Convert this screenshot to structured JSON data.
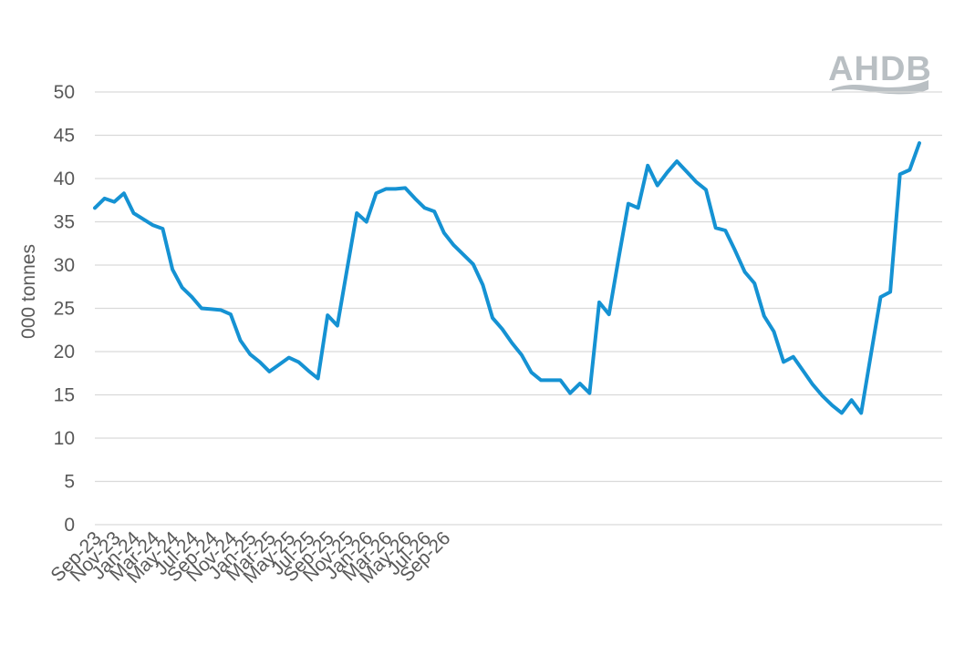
{
  "logo": {
    "text": "AHDB"
  },
  "chart_data": {
    "type": "line",
    "title": "",
    "xlabel": "",
    "ylabel": "000 tonnes",
    "ylim": [
      0,
      50
    ],
    "yticks": [
      0,
      5,
      10,
      15,
      20,
      25,
      30,
      35,
      40,
      45,
      50
    ],
    "grid": true,
    "legend": "none",
    "x_tick_labels": [
      "Sep-23",
      "Nov-23",
      "Jan-24",
      "Mar-24",
      "May-24",
      "Jul-24",
      "Sep-24",
      "Nov-24",
      "Jan-25",
      "Mar-25",
      "May-25",
      "Jul-25",
      "Sep-25",
      "Nov-25",
      "Jan-26",
      "Mar-26",
      "May-26",
      "Jul-26",
      "Sep-26"
    ],
    "x_start": "Sep-23",
    "x_end": "Sep-26",
    "line_color": "#1592d3",
    "grid_color": "#d9d9d9",
    "series": [
      {
        "values": [
          36.6,
          37.7,
          37.3,
          38.3,
          36.0,
          35.3,
          34.6,
          34.2,
          29.5,
          27.4,
          26.3,
          25.0,
          24.9,
          24.8,
          24.3,
          21.3,
          19.7,
          18.8,
          17.7,
          18.5,
          19.3,
          18.8,
          17.8,
          16.9,
          24.2,
          23.0,
          29.5,
          36.0,
          35.0,
          38.3,
          38.8,
          38.8,
          38.9,
          37.7,
          36.6,
          36.2,
          33.7,
          32.3,
          31.2,
          30.1,
          27.7,
          23.9,
          22.6,
          21.0,
          19.6,
          17.6,
          16.7,
          16.7,
          16.7,
          15.2,
          16.3,
          15.2,
          25.7,
          24.3,
          30.8,
          37.1,
          36.6,
          41.5,
          39.2,
          40.7,
          42.0,
          40.8,
          39.6,
          38.7,
          34.3,
          34.0,
          31.7,
          29.2,
          27.9,
          24.1,
          22.3,
          18.8,
          19.4,
          17.8,
          16.2,
          14.9,
          13.8,
          12.9,
          14.4,
          12.9,
          19.6,
          26.3,
          26.9,
          40.5,
          41.0,
          44.1
        ]
      }
    ]
  }
}
